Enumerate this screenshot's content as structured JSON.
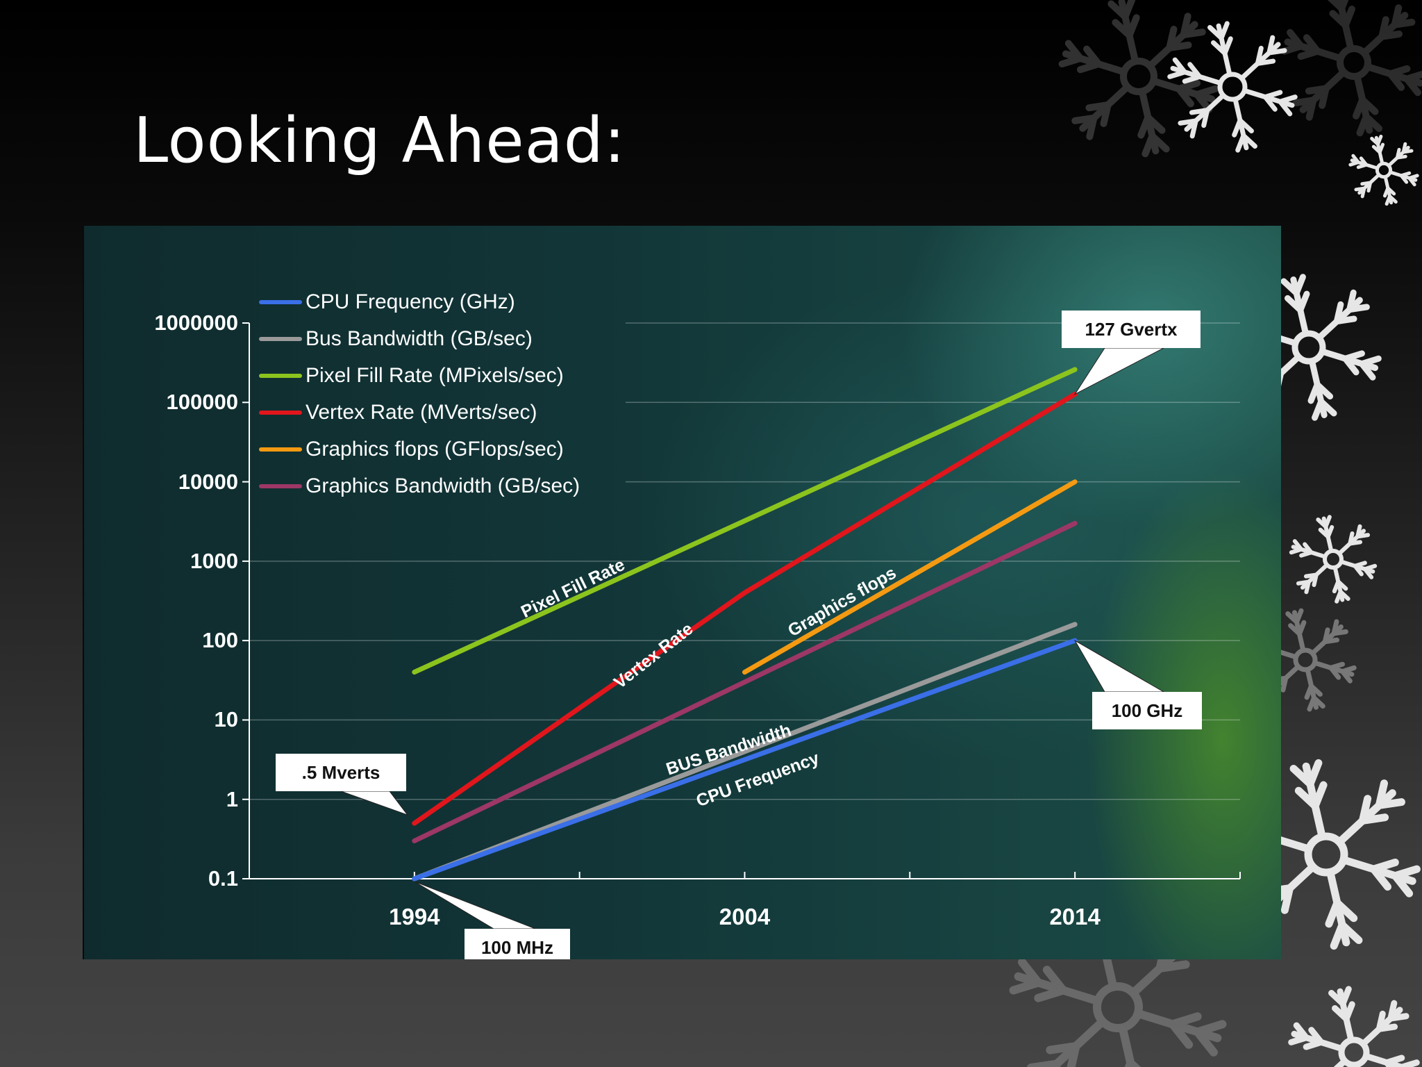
{
  "slide": {
    "title": "Looking Ahead:"
  },
  "colors": {
    "cpu_frequency": "#3a6fe8",
    "bus_bandwidth": "#9a9a9a",
    "pixel_fill_rate": "#8cc41e",
    "vertex_rate": "#e0161c",
    "graphics_flops": "#f49a12",
    "graphics_bandwidth": "#9c3766"
  },
  "chart_data": {
    "type": "line",
    "y_scale": "log",
    "ylim": [
      0.1,
      1000000
    ],
    "xlim": [
      1989,
      2019
    ],
    "grid": true,
    "legend_position": "top-left",
    "y_ticks": [
      "1000000",
      "100000",
      "10000",
      "1000",
      "100",
      "10",
      "1",
      "0.1"
    ],
    "x_ticks": [
      "1994",
      "2004",
      "2014"
    ],
    "series": [
      {
        "name": "CPU Frequency (GHz)",
        "inline_label": "CPU Frequency",
        "color_key": "cpu_frequency",
        "x": [
          1994,
          2014
        ],
        "y": [
          0.1,
          100
        ]
      },
      {
        "name": "Bus Bandwidth (GB/sec)",
        "inline_label": "BUS Bandwidth",
        "color_key": "bus_bandwidth",
        "x": [
          1994,
          2014
        ],
        "y": [
          0.1,
          160
        ]
      },
      {
        "name": "Pixel Fill Rate (MPixels/sec)",
        "inline_label": "Pixel Fill Rate",
        "color_key": "pixel_fill_rate",
        "x": [
          1994,
          2014
        ],
        "y": [
          40,
          260000
        ]
      },
      {
        "name": "Vertex Rate (MVerts/sec)",
        "inline_label": "Vertex Rate",
        "color_key": "vertex_rate",
        "x": [
          1994,
          2004,
          2014
        ],
        "y": [
          0.5,
          400,
          127000
        ]
      },
      {
        "name": "Graphics flops (GFlops/sec)",
        "inline_label": "Graphics flops",
        "color_key": "graphics_flops",
        "x": [
          2004,
          2014
        ],
        "y": [
          40,
          10000
        ]
      },
      {
        "name": "Graphics Bandwidth (GB/sec)",
        "inline_label": "",
        "color_key": "graphics_bandwidth",
        "x": [
          1994,
          2014
        ],
        "y": [
          0.3,
          3000
        ]
      }
    ],
    "annotations": [
      {
        "text": "127 Gvertx",
        "x": 2014,
        "y": 127000
      },
      {
        "text": "100 GHz",
        "x": 2014,
        "y": 100
      },
      {
        "text": ".5 Mverts",
        "x": 1994,
        "y": 0.5
      },
      {
        "text": "100 MHz",
        "x": 1994,
        "y": 0.1
      }
    ]
  }
}
